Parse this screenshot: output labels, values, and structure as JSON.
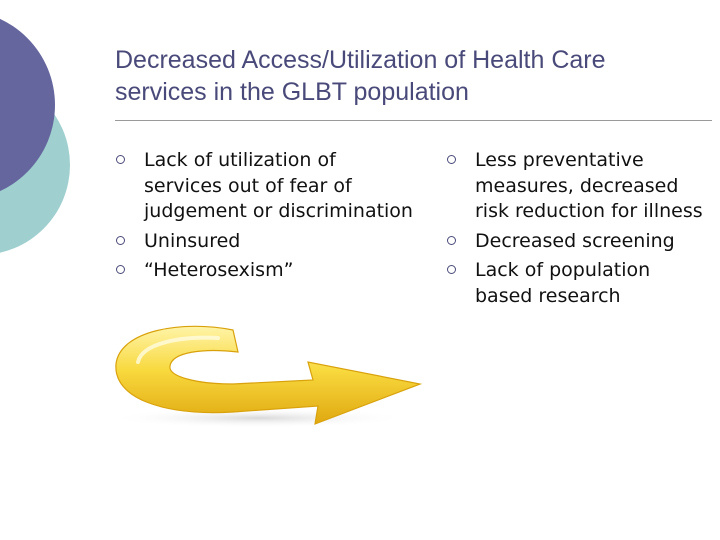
{
  "title": {
    "line1": "Decreased Access/Utilization of Health Care",
    "line2": "services in the GLBT population"
  },
  "left_bullets": [
    {
      "text": "Lack of utilization of services out of fear of judgement or discrimination"
    },
    {
      "text": "Uninsured"
    },
    {
      "text": "“Heterosexism”"
    }
  ],
  "right_bullets": [
    {
      "text": "Less preventative measures, decreased risk reduction for illness"
    },
    {
      "text": "Decreased screening"
    },
    {
      "text": "Lack of population based research"
    }
  ],
  "colors": {
    "title": "#4a4a7a",
    "circle_purple": "#65669e",
    "circle_teal": "#9fd0cf",
    "arrow_yellow": "#f5d23a"
  }
}
